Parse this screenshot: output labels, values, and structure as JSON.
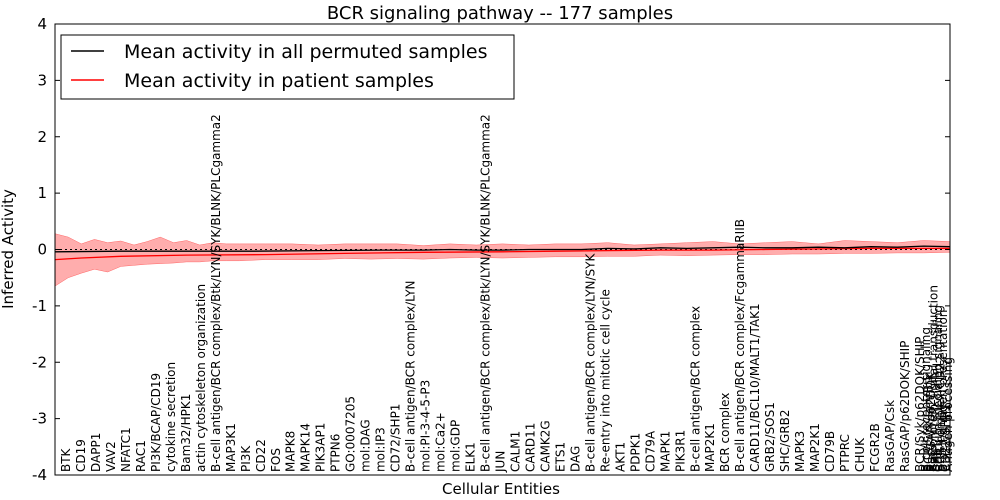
{
  "chart_data": {
    "type": "line",
    "title": "BCR signaling pathway -- 177 samples",
    "xlabel": "Cellular Entities",
    "ylabel": "Inferred Activity",
    "ylim": [
      -4,
      4
    ],
    "yticks": [
      "-4",
      "-3",
      "-2",
      "-1",
      "0",
      "1",
      "2",
      "3",
      "4"
    ],
    "grid": false,
    "legend": {
      "placement": "top-left",
      "entries": [
        {
          "name": "Mean activity in all permuted samples",
          "color": "#000000"
        },
        {
          "name": "Mean activity in patient samples",
          "color": "#ff0000"
        }
      ]
    },
    "band_color": "#ff9999",
    "categories": [
      "BTK",
      "CD19",
      "DAPP1",
      "VAV2",
      "NFATC1",
      "RAC1",
      "PI3K/BCAP/CD19",
      "cytokine secretion",
      "Bam32/HPK1",
      "actin cytoskeleton organization",
      "B-cell antigen/BCR complex/Btk/LYN/SYK/BLNK/PLCgamma2",
      "MAP3K1",
      "PI3K",
      "CD22",
      "FOS",
      "MAPK8",
      "MAPK14",
      "PIK3AP1",
      "PTPN6",
      "GO:0007205",
      "mol:DAG",
      "mol:IP3",
      "CD72/SHP1",
      "B-cell antigen/BCR complex/LYN",
      "mol:PI-3-4-5-P3",
      "mol:Ca2+",
      "mol:GDP",
      "ELK1",
      "B-cell antigen/BCR complex/Btk/LYN/SYK/BLNK/PLCgamma2",
      "JUN",
      "CALM1",
      "CARD11",
      "CAMK2G",
      "ETS1",
      "DAG",
      "B-cell antigen/BCR complex/LYN/SYK",
      "Re-entry into mitotic cell cycle",
      "AKT1",
      "PDPK1",
      "CD79A",
      "MAPK1",
      "PIK3R1",
      "B-cell antigen/BCR complex",
      "MAP2K1",
      "BCR complex",
      "B-cell antigen/BCR complex/FcgammaRIIB",
      "CARD11/BCL10/MALT1/TAK1",
      "GRB2/SOS1",
      "SHC/GRB2",
      "MAPK3",
      "MAP2K1",
      "CD79B",
      "PTPRC",
      "CHUK",
      "FCGR2B",
      "RasGAP/Csk",
      "RasGAP/p62DOK/SHIP",
      "BCR/Syk/p62DOK/SHIP",
      "B cell receptor signaling",
      "BCR/Syk/Lyn/Btk",
      "RasGAP/p62DOK",
      "Ras protein signal transduction",
      "SHIP",
      "Calcium mediated signaling",
      "BCR complex/CD22",
      "B-cell antigen presentation",
      "CD22/SHP1",
      "Antigen processing"
    ],
    "x_start": 0,
    "x_end": 68,
    "series": [
      {
        "name": "Mean activity in patient samples",
        "color": "#ff0000",
        "x": [
          0,
          2,
          5,
          10,
          16,
          22,
          28,
          34,
          38,
          42,
          46,
          50,
          54,
          58,
          62,
          66,
          68
        ],
        "y": [
          -0.18,
          -0.15,
          -0.12,
          -0.1,
          -0.09,
          -0.07,
          -0.05,
          -0.04,
          -0.03,
          -0.02,
          -0.01,
          -0.01,
          0.0,
          0.01,
          0.02,
          0.02,
          0.02
        ]
      },
      {
        "name": "Mean activity in all permuted samples",
        "color": "#000000",
        "x": [
          0,
          5,
          10,
          15,
          20,
          25,
          28,
          30,
          32,
          34,
          36,
          38,
          40,
          42,
          44,
          46,
          48,
          50,
          52,
          54,
          56,
          58,
          60,
          62,
          64,
          66,
          68
        ],
        "y": [
          -0.04,
          -0.03,
          -0.03,
          -0.03,
          -0.02,
          -0.01,
          -0.01,
          0.0,
          -0.01,
          -0.01,
          0.0,
          0.0,
          0.0,
          0.02,
          0.01,
          0.03,
          0.02,
          0.03,
          0.04,
          0.03,
          0.03,
          0.04,
          0.03,
          0.05,
          0.04,
          0.06,
          0.05
        ]
      }
    ],
    "band": {
      "x": [
        0,
        1,
        2,
        3,
        4,
        5,
        6,
        7,
        8,
        9,
        10,
        11,
        12,
        13,
        14,
        16,
        18,
        20,
        22,
        24,
        26,
        28,
        30,
        32,
        34,
        36,
        38,
        40,
        42,
        44,
        46,
        48,
        50,
        52,
        54,
        56,
        58,
        60,
        62,
        64,
        66,
        68
      ],
      "upper": [
        0.28,
        0.22,
        0.1,
        0.18,
        0.12,
        0.15,
        0.08,
        0.14,
        0.22,
        0.12,
        0.16,
        0.08,
        0.12,
        0.1,
        0.1,
        0.1,
        0.1,
        0.08,
        0.1,
        0.1,
        0.1,
        0.07,
        0.1,
        0.08,
        0.1,
        0.08,
        0.1,
        0.1,
        0.12,
        0.08,
        0.1,
        0.12,
        0.14,
        0.1,
        0.12,
        0.14,
        0.1,
        0.16,
        0.14,
        0.12,
        0.16,
        0.14
      ],
      "lower": [
        -0.65,
        -0.5,
        -0.42,
        -0.35,
        -0.4,
        -0.3,
        -0.28,
        -0.26,
        -0.25,
        -0.24,
        -0.22,
        -0.22,
        -0.2,
        -0.2,
        -0.2,
        -0.18,
        -0.18,
        -0.18,
        -0.16,
        -0.17,
        -0.16,
        -0.17,
        -0.15,
        -0.14,
        -0.15,
        -0.14,
        -0.13,
        -0.13,
        -0.12,
        -0.12,
        -0.1,
        -0.11,
        -0.1,
        -0.09,
        -0.09,
        -0.08,
        -0.08,
        -0.07,
        -0.07,
        -0.06,
        -0.06,
        -0.05
      ]
    }
  }
}
